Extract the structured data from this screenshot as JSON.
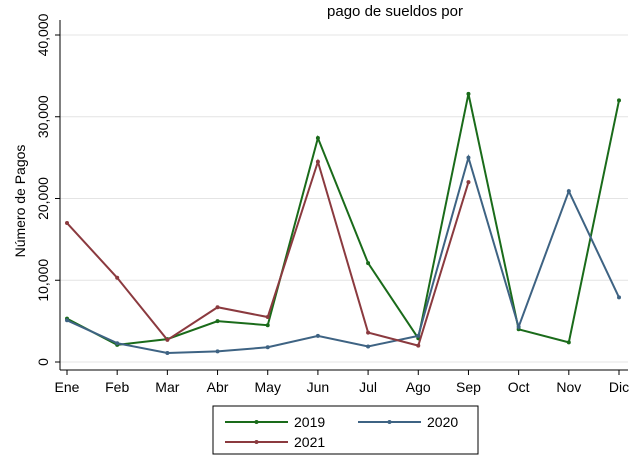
{
  "chart_data": {
    "type": "line",
    "title": "pago de sueldos por",
    "xlabel": "",
    "ylabel": "Número de Pagos",
    "categories": [
      "Ene",
      "Feb",
      "Mar",
      "Abr",
      "May",
      "Jun",
      "Jul",
      "Ago",
      "Sep",
      "Oct",
      "Nov",
      "Dic"
    ],
    "ylim": [
      0,
      40000
    ],
    "yticks": [
      0,
      10000,
      20000,
      30000,
      40000
    ],
    "ytick_labels": [
      "0",
      "10,000",
      "20,000",
      "30,000",
      "40,000"
    ],
    "grid": true,
    "legend_position": "bottom",
    "series": [
      {
        "name": "2019",
        "color": "#1a6b1a",
        "values": [
          5300,
          2100,
          2800,
          5000,
          4500,
          27400,
          12100,
          2900,
          32800,
          4000,
          2400,
          32000
        ]
      },
      {
        "name": "2020",
        "color": "#3e6383",
        "values": [
          5100,
          2300,
          1100,
          1300,
          1800,
          3200,
          1900,
          3200,
          25000,
          4300,
          20900,
          7900
        ]
      },
      {
        "name": "2021",
        "color": "#8b3a3f",
        "values": [
          17000,
          10300,
          2700,
          6700,
          5500,
          24500,
          3600,
          2000,
          22000,
          null,
          null,
          null
        ]
      }
    ]
  }
}
